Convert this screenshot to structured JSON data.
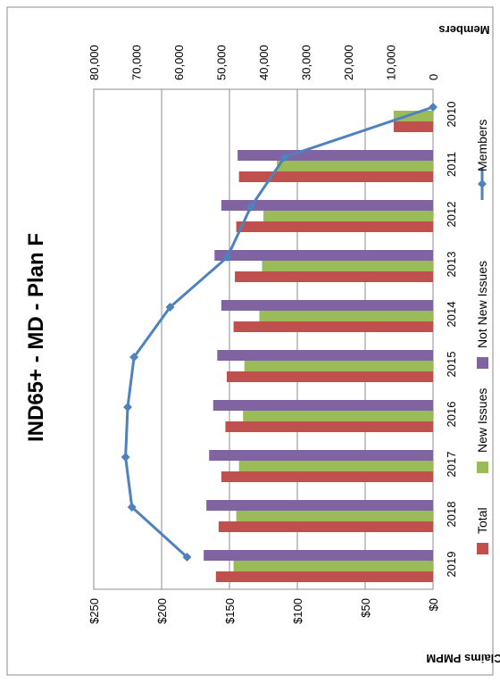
{
  "chart_data": {
    "type": "bar",
    "title": "IND65+ - MD - Plan F",
    "categories": [
      "2010",
      "2011",
      "2012",
      "2013",
      "2014",
      "2015",
      "2016",
      "2017",
      "2018",
      "2019"
    ],
    "series": [
      {
        "name": "Total",
        "kind": "bar",
        "axis": "primary",
        "color": "#C0504D",
        "values": [
          29,
          143,
          145,
          146,
          147,
          152,
          153,
          156,
          158,
          160
        ]
      },
      {
        "name": "New Issues",
        "kind": "bar",
        "axis": "primary",
        "color": "#9BBB59",
        "values": [
          29,
          115,
          125,
          126,
          128,
          139,
          140,
          143,
          145,
          147
        ]
      },
      {
        "name": "Not New Issues",
        "kind": "bar",
        "axis": "primary",
        "color": "#8064A2",
        "values": [
          0,
          144,
          156,
          161,
          156,
          159,
          162,
          165,
          167,
          169
        ]
      },
      {
        "name": "Members",
        "kind": "line",
        "axis": "secondary",
        "color": "#4F81BD",
        "values": [
          0,
          35000,
          43000,
          48500,
          62000,
          70500,
          72000,
          72500,
          71000,
          58000
        ]
      }
    ],
    "primary_axis": {
      "title": "Claims PMPM",
      "min": 0,
      "max": 250,
      "step": 50,
      "tick_labels": [
        "$0",
        "$50",
        "$100",
        "$150",
        "$200",
        "$250"
      ]
    },
    "secondary_axis": {
      "title": "Members",
      "min": 0,
      "max": 80000,
      "step": 10000,
      "tick_labels": [
        "0",
        "10,000",
        "20,000",
        "30,000",
        "40,000",
        "50,000",
        "60,000",
        "70,000",
        "80,000"
      ]
    },
    "legend_position": "right",
    "gridlines": true
  }
}
